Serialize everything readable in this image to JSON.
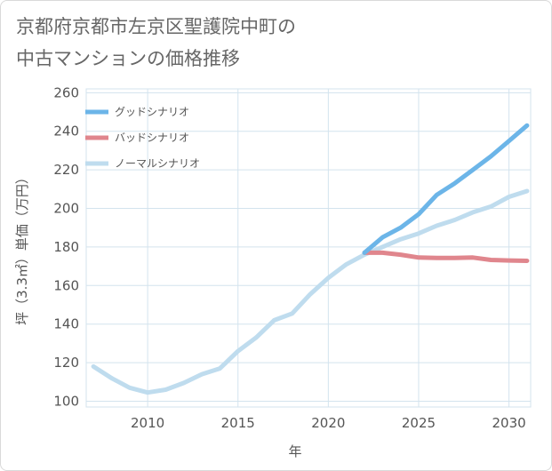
{
  "chart_data": {
    "type": "line",
    "title": "京都府京都市左京区聖護院中町の\n中古マンションの価格推移",
    "xlabel": "年",
    "ylabel": "坪（3.3㎡）単価（万円）",
    "xlim": [
      2006.6,
      2031.2
    ],
    "ylim": [
      97,
      262
    ],
    "xticks": [
      2010,
      2015,
      2020,
      2025,
      2030
    ],
    "yticks": [
      100,
      120,
      140,
      160,
      180,
      200,
      220,
      240,
      260
    ],
    "grid": true,
    "legend_position": "top-left",
    "series": [
      {
        "name": "グッドシナリオ",
        "color": "#6cb5e8",
        "x": [
          2022,
          2023,
          2024,
          2025,
          2026,
          2027,
          2028,
          2029,
          2030,
          2031
        ],
        "y": [
          177,
          185,
          190,
          197,
          207,
          213,
          220,
          227,
          235,
          243
        ]
      },
      {
        "name": "バッドシナリオ",
        "color": "#e0868d",
        "x": [
          2022,
          2023,
          2024,
          2025,
          2026,
          2027,
          2028,
          2029,
          2030,
          2031
        ],
        "y": [
          177,
          177,
          176,
          174.5,
          174.3,
          174.3,
          174.5,
          173.3,
          173,
          172.8
        ]
      },
      {
        "name": "ノーマルシナリオ",
        "color": "#bfdcee",
        "x": [
          2007,
          2008,
          2009,
          2010,
          2011,
          2012,
          2013,
          2014,
          2015,
          2016,
          2017,
          2018,
          2019,
          2020,
          2021,
          2022,
          2023,
          2024,
          2025,
          2026,
          2027,
          2028,
          2029,
          2030,
          2031
        ],
        "y": [
          118,
          112,
          107,
          104.5,
          106,
          109.5,
          114,
          117,
          126,
          133,
          142,
          145.5,
          155.5,
          164,
          171,
          176,
          180,
          184,
          187,
          191,
          194,
          198,
          201,
          206,
          209
        ]
      }
    ]
  }
}
